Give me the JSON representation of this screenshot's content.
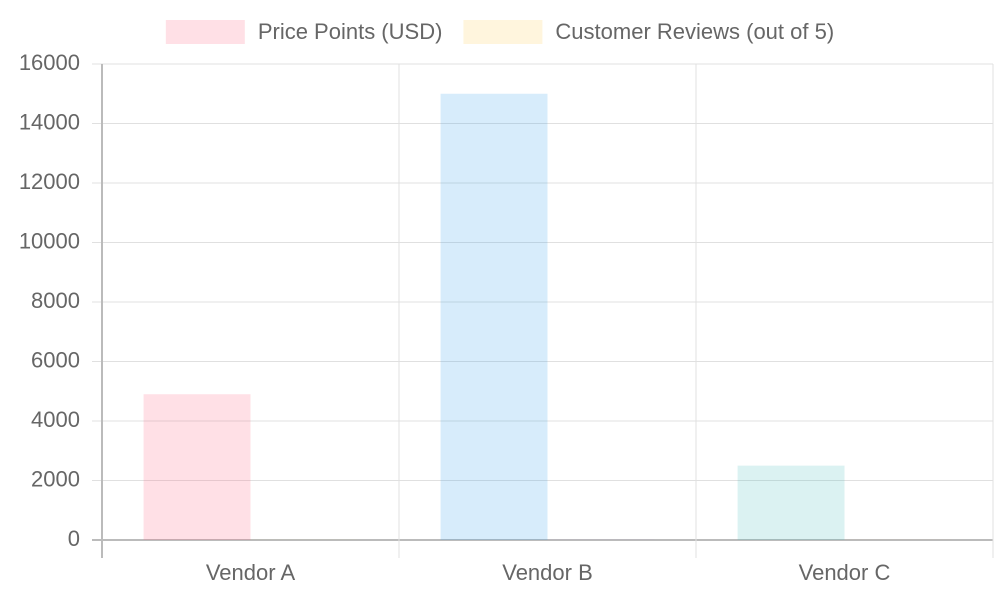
{
  "chart_data": {
    "type": "bar",
    "categories": [
      "Vendor A",
      "Vendor B",
      "Vendor C"
    ],
    "series": [
      {
        "name": "Price Points (USD)",
        "colors": [
          "rgba(255,99,132,0.2)",
          "rgba(54,162,235,0.2)",
          "rgba(75,192,192,0.2)"
        ],
        "values": [
          4900,
          15000,
          2500
        ]
      },
      {
        "name": "Customer Reviews (out of 5)",
        "colors": [
          "rgba(255,206,86,0.2)",
          "rgba(153,102,255,0.2)",
          "rgba(255,159,64,0.2)"
        ],
        "values": [
          4.5,
          4.8,
          4.2
        ]
      }
    ],
    "ylim": [
      0,
      16000
    ],
    "yticks": [
      0,
      2000,
      4000,
      6000,
      8000,
      10000,
      12000,
      14000,
      16000
    ],
    "grid": true,
    "legend": "top"
  }
}
